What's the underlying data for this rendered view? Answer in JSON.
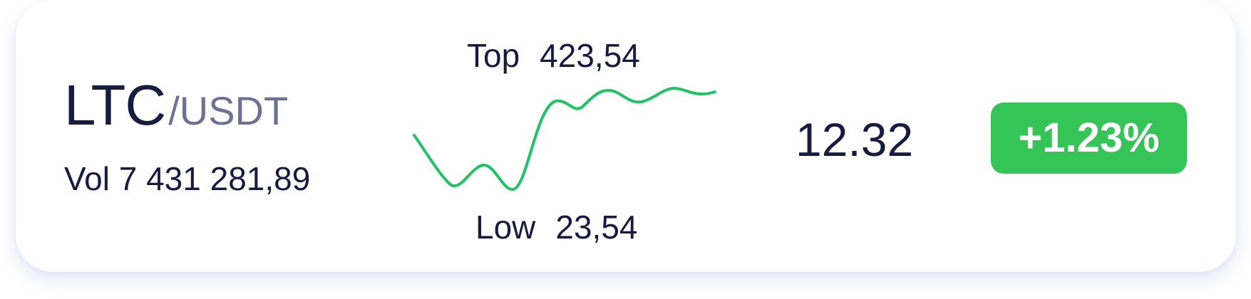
{
  "ticker": {
    "base": "LTC",
    "quote": "/USDT",
    "volume": "Vol 7 431 281,89",
    "top_label": "Top",
    "top_value": "423,54",
    "low_label": "Low",
    "low_value": "23,54",
    "price": "12.32",
    "change": "+1.23%"
  },
  "colors": {
    "text_primary": "#151c40",
    "text_secondary": "#6c7291",
    "sparkline": "#1cc464",
    "badge": "#35c456"
  }
}
